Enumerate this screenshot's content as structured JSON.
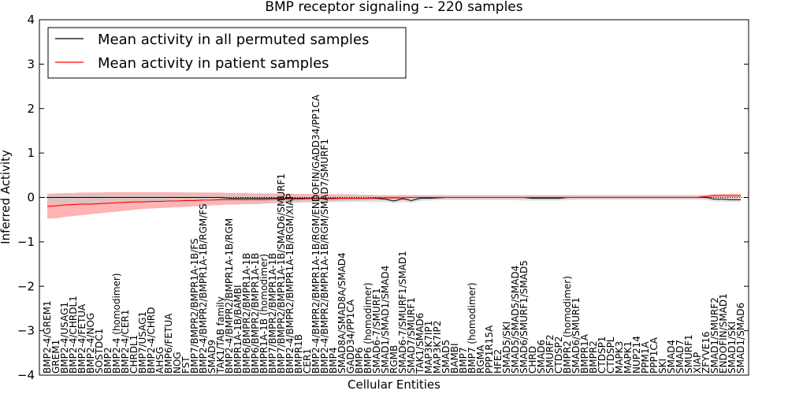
{
  "chart_data": {
    "type": "line",
    "title": "BMP receptor signaling -- 220 samples",
    "xlabel": "Cellular Entities",
    "ylabel": "Inferred Activity",
    "ylim": [
      -4,
      4
    ],
    "yticks": [
      -4,
      -3,
      -2,
      -1,
      0,
      1,
      2,
      3,
      4
    ],
    "ytick_labels": [
      "−4",
      "−3",
      "−2",
      "−1",
      "0",
      "1",
      "2",
      "3",
      "4"
    ],
    "legend_position": "top-left",
    "colors": {
      "permuted": "#000000",
      "patient": "#ff0000",
      "patient_band": "#ff9a9a",
      "permuted_band": "#c8c8c8",
      "zero_line": "#000000"
    },
    "categories": [
      "BMP2-4/GREM1",
      "GREM1",
      "BMP2-4/USAG1",
      "BMP2-4/CHRDL1",
      "BMP2-4/FETUA",
      "BMP2-4/NOG",
      "SOSTDC1",
      "BMP2",
      "BMP2-4 (homodimer)",
      "BMP2-4/CER1",
      "CHRDL1",
      "BMP7/USAG1",
      "BMP2-4/CHRD",
      "AHSG",
      "BMP6/FETUA",
      "NOG",
      "FST",
      "BMP7/BMPR2/BMPR1A-1B/FS",
      "BMP2-4/BMPR2/BMPR1A-1B/RGM/FS",
      "SMAD9",
      "TAK1/TAB family",
      "BMP2-4/BMPR2/BMPR1A-1B/RGM",
      "BMPR1A-1B/BAMBI",
      "BMP6/BMPR2/BMPR1A-1B",
      "BMP6/BMPR2/BMPR1A-1B",
      "BMPR1A-1B (homodimer)",
      "BMP7/BMPR2/BMPR1A-1B",
      "BMP7/BMPR2/BMPR1A-1B/SMAD6/SMURF1",
      "BMP2-4/BMPR2/BMPR1A-1B/RGM/XIAP",
      "BMPR1B",
      "CER1",
      "BMP2-4/BMPR2/BMPR1A-1B/RGM/ENDOFIN/GADD34/PP1CA",
      "BMP2-4/BMPR2/BMPR1A-1B/RGM/SMAD7/SMURF1",
      "BMP4",
      "SMAD8A/SMAD8A/SMAD4",
      "GADD34/PP1CA",
      "BMP6",
      "BMP6 (homodimer)",
      "SMAD6-7/SMURF1",
      "SMAD1/SMAD1/SMAD4",
      "RGMB",
      "SMAD6-7/SMURF1/SMAD1",
      "SMAD7/SMURF1",
      "TAK1/SMAD6",
      "MAP3K7IP1",
      "MAP3K7IP2",
      "SMAD5",
      "BAMBI",
      "BMP7",
      "BMP7 (homodimer)",
      "RGMA",
      "PPP1R15A",
      "HFE2",
      "SMAD5/SKI",
      "SMAD5/SMAD5/SMAD4",
      "SMAD6/SMURF1/SMAD5",
      "CHRD",
      "SMAD6",
      "SMURF2",
      "CTDSP2",
      "BMPR2 (homodimer)",
      "SMAD6/SMURF1",
      "BMPR1A",
      "BMPR2",
      "CTDSP1",
      "CTDSPL",
      "MAPK3",
      "MAPK1",
      "NUP214",
      "PPM1A",
      "PPP1CA",
      "SKI",
      "SMAD4",
      "SMAD7",
      "SMURF1",
      "XIAP",
      "ZFYVE16",
      "SMAD1/SMURF2",
      "ENDOFIN/SMAD1",
      "SMAD1/SKI",
      "SMAD1/SMAD6"
    ],
    "series": [
      {
        "name": "Mean activity in all permuted samples",
        "color": "#000000",
        "values": [
          0,
          0,
          0,
          0,
          0,
          0,
          0,
          0,
          0,
          0,
          0,
          0,
          0,
          0,
          0,
          0,
          0,
          0,
          0,
          0,
          0,
          -0.02,
          -0.02,
          -0.02,
          -0.02,
          -0.02,
          -0.02,
          -0.02,
          -0.02,
          -0.02,
          -0.02,
          -0.02,
          -0.02,
          -0.02,
          -0.02,
          -0.02,
          -0.02,
          -0.02,
          -0.02,
          -0.04,
          -0.08,
          -0.03,
          -0.07,
          -0.02,
          -0.02,
          -0.01,
          0,
          0,
          0,
          0,
          0,
          0,
          0,
          0,
          0,
          0,
          -0.02,
          -0.02,
          -0.02,
          -0.02,
          0,
          0,
          0,
          0,
          0,
          0,
          0,
          0,
          0,
          0,
          0,
          0,
          0,
          0,
          0,
          0,
          0,
          -0.04,
          -0.04,
          -0.05,
          -0.05
        ],
        "band_low": [
          -0.14,
          -0.13,
          -0.13,
          -0.13,
          -0.13,
          -0.13,
          -0.12,
          -0.12,
          -0.12,
          -0.12,
          -0.12,
          -0.12,
          -0.12,
          -0.12,
          -0.12,
          -0.12,
          -0.11,
          -0.11,
          -0.11,
          -0.11,
          -0.11,
          -0.11,
          -0.11,
          -0.11,
          -0.11,
          -0.11,
          -0.11,
          -0.11,
          -0.11,
          -0.11,
          -0.11,
          -0.11,
          -0.11,
          -0.1,
          -0.1,
          -0.1,
          -0.1,
          -0.1,
          -0.1,
          -0.1,
          -0.13,
          -0.1,
          -0.12,
          -0.08,
          -0.07,
          -0.06,
          -0.06,
          -0.06,
          -0.06,
          -0.06,
          -0.06,
          -0.06,
          -0.06,
          -0.06,
          -0.06,
          -0.07,
          -0.07,
          -0.07,
          -0.07,
          -0.07,
          -0.06,
          -0.05,
          -0.05,
          -0.05,
          -0.05,
          -0.05,
          -0.05,
          -0.05,
          -0.05,
          -0.05,
          -0.05,
          -0.05,
          -0.05,
          -0.05,
          -0.05,
          -0.05,
          -0.06,
          -0.09,
          -0.09,
          -0.1,
          -0.1
        ],
        "band_high": [
          0.07,
          0.07,
          0.07,
          0.07,
          0.07,
          0.07,
          0.07,
          0.07,
          0.07,
          0.07,
          0.07,
          0.07,
          0.07,
          0.07,
          0.07,
          0.07,
          0.07,
          0.07,
          0.07,
          0.07,
          0.06,
          0.05,
          0.05,
          0.05,
          0.05,
          0.05,
          0.05,
          0.05,
          0.05,
          0.05,
          0.05,
          0.05,
          0.05,
          0.05,
          0.05,
          0.05,
          0.05,
          0.05,
          0.05,
          0.03,
          0,
          0.03,
          0.01,
          0.04,
          0.04,
          0.04,
          0.04,
          0.04,
          0.04,
          0.04,
          0.04,
          0.04,
          0.04,
          0.04,
          0.04,
          0.04,
          0.03,
          0.03,
          0.03,
          0.03,
          0.04,
          0.04,
          0.04,
          0.04,
          0.04,
          0.04,
          0.04,
          0.04,
          0.04,
          0.04,
          0.04,
          0.04,
          0.04,
          0.04,
          0.04,
          0.04,
          0.04,
          0.02,
          0.02,
          0.02,
          0.02
        ]
      },
      {
        "name": "Mean activity in patient samples",
        "color": "#ff0000",
        "values": [
          -0.2,
          -0.19,
          -0.17,
          -0.16,
          -0.15,
          -0.15,
          -0.14,
          -0.13,
          -0.12,
          -0.11,
          -0.1,
          -0.1,
          -0.09,
          -0.09,
          -0.08,
          -0.08,
          -0.07,
          -0.07,
          -0.06,
          -0.06,
          -0.05,
          -0.05,
          -0.05,
          -0.05,
          -0.05,
          -0.05,
          -0.04,
          -0.04,
          -0.04,
          -0.04,
          -0.03,
          -0.03,
          -0.03,
          -0.03,
          -0.02,
          -0.02,
          -0.02,
          -0.02,
          -0.01,
          -0.01,
          -0.01,
          -0.01,
          0,
          0,
          0,
          0,
          0,
          0,
          0,
          0,
          0,
          0,
          0,
          0,
          0,
          0,
          0,
          0,
          0,
          0,
          0,
          0,
          0,
          0,
          0,
          0,
          0,
          0,
          0,
          0,
          0,
          0,
          0,
          0,
          0,
          0,
          0.02,
          0.04,
          0.04,
          0.04,
          0.04
        ],
        "band_low": [
          -0.48,
          -0.47,
          -0.44,
          -0.42,
          -0.4,
          -0.38,
          -0.36,
          -0.34,
          -0.32,
          -0.3,
          -0.28,
          -0.26,
          -0.25,
          -0.24,
          -0.23,
          -0.22,
          -0.21,
          -0.2,
          -0.19,
          -0.18,
          -0.17,
          -0.16,
          -0.16,
          -0.15,
          -0.15,
          -0.14,
          -0.13,
          -0.12,
          -0.12,
          -0.11,
          -0.1,
          -0.1,
          -0.09,
          -0.09,
          -0.08,
          -0.07,
          -0.07,
          -0.06,
          -0.05,
          -0.05,
          -0.04,
          -0.04,
          -0.03,
          -0.03,
          -0.03,
          -0.03,
          -0.03,
          -0.03,
          -0.03,
          -0.03,
          -0.03,
          -0.03,
          -0.03,
          -0.03,
          -0.03,
          -0.03,
          -0.03,
          -0.03,
          -0.03,
          -0.03,
          -0.03,
          -0.03,
          -0.03,
          -0.03,
          -0.03,
          -0.03,
          -0.03,
          -0.03,
          -0.03,
          -0.03,
          -0.03,
          -0.03,
          -0.03,
          -0.03,
          -0.03,
          -0.03,
          -0.02,
          0,
          0,
          0,
          0
        ],
        "band_high": [
          0.08,
          0.09,
          0.1,
          0.1,
          0.11,
          0.11,
          0.11,
          0.12,
          0.12,
          0.12,
          0.12,
          0.12,
          0.12,
          0.12,
          0.12,
          0.12,
          0.11,
          0.11,
          0.11,
          0.11,
          0.11,
          0.1,
          0.1,
          0.1,
          0.09,
          0.09,
          0.09,
          0.08,
          0.08,
          0.08,
          0.08,
          0.08,
          0.07,
          0.07,
          0.07,
          0.07,
          0.06,
          0.06,
          0.05,
          0.05,
          0.05,
          0.05,
          0.05,
          0.05,
          0.05,
          0.05,
          0.05,
          0.05,
          0.05,
          0.05,
          0.05,
          0.05,
          0.05,
          0.05,
          0.05,
          0.05,
          0.05,
          0.05,
          0.05,
          0.05,
          0.05,
          0.05,
          0.05,
          0.05,
          0.05,
          0.05,
          0.05,
          0.05,
          0.05,
          0.05,
          0.05,
          0.05,
          0.05,
          0.05,
          0.05,
          0.05,
          0.06,
          0.08,
          0.08,
          0.08,
          0.08
        ]
      }
    ]
  }
}
